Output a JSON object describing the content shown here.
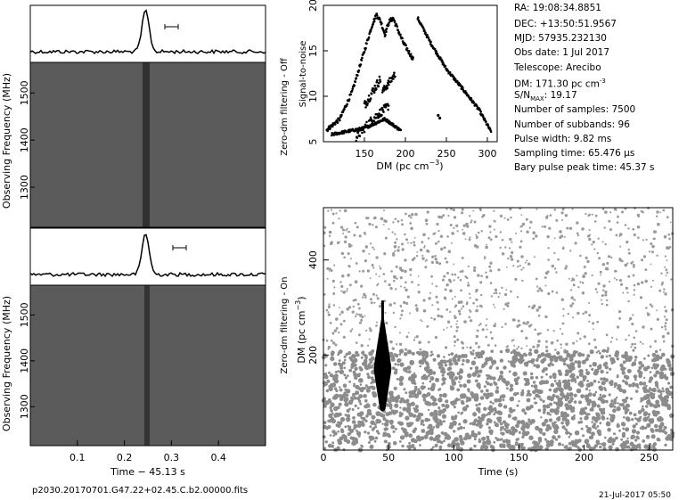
{
  "info": {
    "ra": "RA: 19:08:34.8851",
    "dec": "DEC: +13:50:51.9567",
    "mjd": "MJD: 57935.232130",
    "obs_date": "Obs date: 1 Jul 2017",
    "telescope": "Telescope: Arecibo",
    "dm": "DM: 171.30 pc cm",
    "dm_exp": "-3",
    "snr_prefix": "S/N",
    "snr_sub": "MAX",
    "snr_value": ": 19.17",
    "nsamples": "Number of samples: 7500",
    "nsubbands": "Number of subbands: 96",
    "pulse_width": "Pulse width: 9.82 ms",
    "sampling_time": "Sampling time: 65.476 µs",
    "bary_peak": "Bary pulse peak time: 45.37 s"
  },
  "footer": {
    "filename": "p2030.20170701.G47.22+02.45.C.b2.00000.fits",
    "date": "21-Jul-2017 05:50"
  },
  "side_labels": {
    "off": "Zero-dm filtering - Off",
    "on": "Zero-dm filtering - On"
  },
  "chart_data": [
    {
      "id": "waterfall-off",
      "type": "heatmap",
      "ylabel": "Observing Frequency (MHz)",
      "yticks": [
        1300,
        1400,
        1500
      ],
      "ylim": [
        1215,
        1565
      ],
      "xlim": [
        0,
        0.5
      ],
      "pulse_time": 0.245,
      "profile_peak_time": 0.245
    },
    {
      "id": "waterfall-on",
      "type": "heatmap",
      "ylabel": "Observing Frequency (MHz)",
      "xlabel": "Time − 45.13 s",
      "xticks": [
        0.1,
        0.2,
        0.3,
        0.4
      ],
      "xlim": [
        0,
        0.5
      ],
      "yticks": [
        1300,
        1400,
        1500
      ],
      "ylim": [
        1215,
        1565
      ],
      "pulse_time": 0.245,
      "profile_peak_time": 0.245
    },
    {
      "id": "snr-vs-dm",
      "type": "scatter",
      "xlabel": "DM (pc cm",
      "xlabel_exp": "−3",
      "xlabel_end": ")",
      "ylabel": "Signal-to-noise",
      "xticks": [
        150,
        200,
        250,
        300
      ],
      "yticks": [
        5,
        10,
        15,
        20
      ],
      "xlim": [
        100,
        312
      ],
      "ylim": [
        5,
        20
      ],
      "peaks": [
        {
          "x": 165,
          "y": 19.0
        },
        {
          "x": 185,
          "y": 18.6
        }
      ],
      "curve": [
        [
          104,
          6.3
        ],
        [
          120,
          7.5
        ],
        [
          135,
          10.5
        ],
        [
          150,
          15.0
        ],
        [
          160,
          18.0
        ],
        [
          165,
          19.0
        ],
        [
          170,
          18.2
        ],
        [
          175,
          16.8
        ],
        [
          180,
          18.2
        ],
        [
          185,
          18.6
        ],
        [
          190,
          17.5
        ],
        [
          198,
          15.8
        ],
        [
          210,
          14.0
        ]
      ],
      "curve2": [
        [
          215,
          18.6
        ],
        [
          230,
          16.0
        ],
        [
          250,
          13.0
        ],
        [
          270,
          10.8
        ],
        [
          290,
          8.5
        ],
        [
          305,
          6.0
        ]
      ]
    },
    {
      "id": "dm-vs-time",
      "type": "scatter",
      "xlabel": "Time (s)",
      "ylabel": "DM (pc cm",
      "ylabel_exp": "−3",
      "ylabel_end": ")",
      "xticks": [
        0,
        50,
        100,
        150,
        200,
        250
      ],
      "yticks": [
        200,
        400
      ],
      "xlim": [
        0,
        268
      ],
      "ylim": [
        0,
        510
      ],
      "burst": {
        "time": 45.37,
        "dm": 171.3,
        "dm_low": 88,
        "dm_high": 312
      },
      "dense_below_dm": 210
    }
  ]
}
